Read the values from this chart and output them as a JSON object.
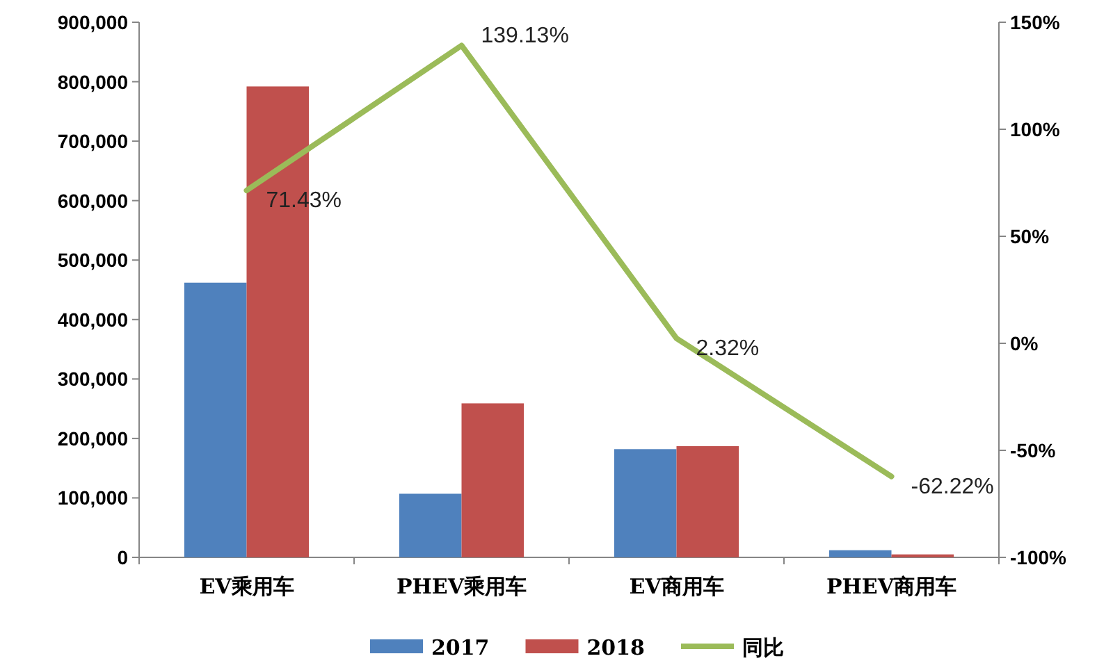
{
  "chart_data": {
    "type": "bar",
    "categories": [
      "EV乘用车",
      "PHEV乘用车",
      "EV商用车",
      "PHEV商用车"
    ],
    "series": [
      {
        "name": "2017",
        "color": "#4f81bd",
        "values": [
          462000,
          107000,
          182000,
          12000
        ]
      },
      {
        "name": "2018",
        "color": "#c0504d",
        "values": [
          792000,
          259000,
          187000,
          5000
        ]
      },
      {
        "name": "同比",
        "type": "line",
        "axis": "y2",
        "color": "#9bbb59",
        "values": [
          71.43,
          139.13,
          2.32,
          -62.22
        ],
        "value_labels": [
          "71.43%",
          "139.13%",
          "2.32%",
          "-62.22%"
        ]
      }
    ],
    "ylim": [
      0,
      900000
    ],
    "yticks": [
      {
        "value": 0,
        "label": "0"
      },
      {
        "value": 100000,
        "label": "100,000"
      },
      {
        "value": 200000,
        "label": "200,000"
      },
      {
        "value": 300000,
        "label": "300,000"
      },
      {
        "value": 400000,
        "label": "400,000"
      },
      {
        "value": 500000,
        "label": "500,000"
      },
      {
        "value": 600000,
        "label": "600,000"
      },
      {
        "value": 700000,
        "label": "700,000"
      },
      {
        "value": 800000,
        "label": "800,000"
      },
      {
        "value": 900000,
        "label": "900,000"
      }
    ],
    "y2lim": [
      -100,
      150
    ],
    "y2ticks": [
      {
        "value": -100,
        "label": "-100%"
      },
      {
        "value": -50,
        "label": "-50%"
      },
      {
        "value": 0,
        "label": "0%"
      },
      {
        "value": 50,
        "label": "50%"
      },
      {
        "value": 100,
        "label": "100%"
      },
      {
        "value": 150,
        "label": "150%"
      }
    ],
    "grid": false,
    "legend": "bottom"
  }
}
